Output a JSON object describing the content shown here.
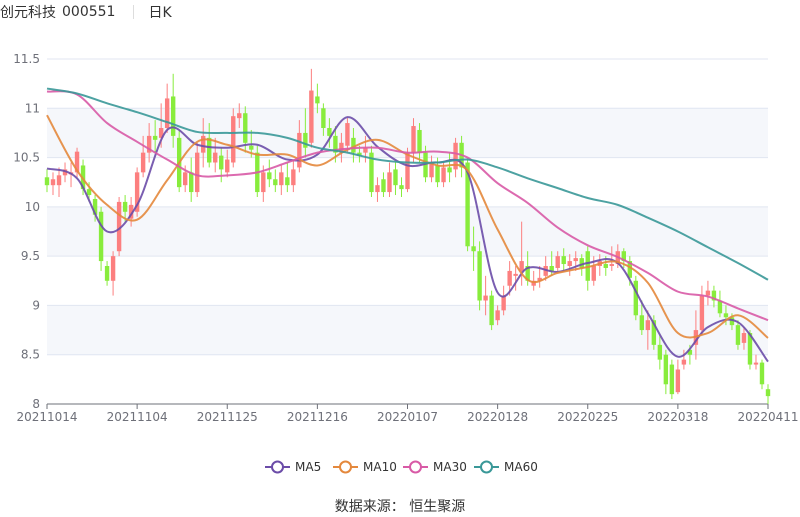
{
  "header": {
    "stock_name": "创元科技",
    "stock_code": "000551",
    "period": "日K"
  },
  "footer": {
    "source": "数据来源： 恒生聚源"
  },
  "chart_data": {
    "type": "candlestick",
    "ylim": [
      8,
      11.5
    ],
    "yticks": [
      "8",
      "8.5",
      "9",
      "9.5",
      "10",
      "10.5",
      "11",
      "11.5"
    ],
    "xtick_labels": [
      "20211014",
      "20211104",
      "20211125",
      "20211216",
      "20220107",
      "20220128",
      "20220225",
      "20220318",
      "20220411"
    ],
    "grid": true,
    "legend_position": "bottom",
    "colors": {
      "up": "#fc7f7f",
      "down": "#88ec3c",
      "MA5": "#6b4ca8",
      "MA10": "#e4883c",
      "MA30": "#d85aa6",
      "MA60": "#3a9898",
      "band": "#f5f7fb",
      "grid": "#e0e6f1"
    },
    "candles_ocLH": [
      [
        10.3,
        10.22,
        10.15,
        10.38
      ],
      [
        10.22,
        10.28,
        10.12,
        10.35
      ],
      [
        10.22,
        10.32,
        10.1,
        10.4
      ],
      [
        10.32,
        10.38,
        10.25,
        10.45
      ],
      [
        10.33,
        10.35,
        10.2,
        10.45
      ],
      [
        10.35,
        10.56,
        10.3,
        10.6
      ],
      [
        10.42,
        10.18,
        10.12,
        10.48
      ],
      [
        10.18,
        10.12,
        10.05,
        10.25
      ],
      [
        10.08,
        9.92,
        9.85,
        10.12
      ],
      [
        9.95,
        9.45,
        9.35,
        10.0
      ],
      [
        9.4,
        9.25,
        9.2,
        9.45
      ],
      [
        9.25,
        9.5,
        9.1,
        9.55
      ],
      [
        9.55,
        10.05,
        9.5,
        10.1
      ],
      [
        10.05,
        9.95,
        9.85,
        10.12
      ],
      [
        9.88,
        10.02,
        9.8,
        10.1
      ],
      [
        9.95,
        10.35,
        9.9,
        10.4
      ],
      [
        10.35,
        10.55,
        10.3,
        10.72
      ],
      [
        10.55,
        10.72,
        10.45,
        10.85
      ],
      [
        10.72,
        10.68,
        10.55,
        10.88
      ],
      [
        10.7,
        10.8,
        10.6,
        11.05
      ],
      [
        10.8,
        11.1,
        10.75,
        11.25
      ],
      [
        11.12,
        10.72,
        10.6,
        11.35
      ],
      [
        10.7,
        10.2,
        10.15,
        10.78
      ],
      [
        10.22,
        10.35,
        10.15,
        10.42
      ],
      [
        10.35,
        10.15,
        10.05,
        10.5
      ],
      [
        10.15,
        10.55,
        10.1,
        10.65
      ],
      [
        10.55,
        10.72,
        10.4,
        10.9
      ],
      [
        10.7,
        10.45,
        10.4,
        10.85
      ],
      [
        10.45,
        10.55,
        10.35,
        10.7
      ],
      [
        10.52,
        10.38,
        10.25,
        10.6
      ],
      [
        10.35,
        10.48,
        10.3,
        10.58
      ],
      [
        10.45,
        10.92,
        10.4,
        11.0
      ],
      [
        10.9,
        10.95,
        10.8,
        11.05
      ],
      [
        10.95,
        10.65,
        10.55,
        11.02
      ],
      [
        10.62,
        10.58,
        10.5,
        10.78
      ],
      [
        10.55,
        10.15,
        10.1,
        10.62
      ],
      [
        10.15,
        10.35,
        10.05,
        10.42
      ],
      [
        10.35,
        10.28,
        10.2,
        10.48
      ],
      [
        10.28,
        10.22,
        10.15,
        10.38
      ],
      [
        10.22,
        10.35,
        10.12,
        10.42
      ],
      [
        10.3,
        10.22,
        10.15,
        10.45
      ],
      [
        10.22,
        10.38,
        10.15,
        10.48
      ],
      [
        10.4,
        10.75,
        10.35,
        10.88
      ],
      [
        10.75,
        10.6,
        10.5,
        11.0
      ],
      [
        10.65,
        11.18,
        10.6,
        11.4
      ],
      [
        11.12,
        11.05,
        10.95,
        11.25
      ],
      [
        11.0,
        10.8,
        10.72,
        11.05
      ],
      [
        10.8,
        10.72,
        10.6,
        10.9
      ],
      [
        10.72,
        10.55,
        10.45,
        10.82
      ],
      [
        10.55,
        10.65,
        10.45,
        10.75
      ],
      [
        10.62,
        10.85,
        10.55,
        10.9
      ],
      [
        10.7,
        10.55,
        10.45,
        10.8
      ],
      [
        10.55,
        10.52,
        10.45,
        10.62
      ],
      [
        10.55,
        10.6,
        10.45,
        10.72
      ],
      [
        10.55,
        10.15,
        10.1,
        10.62
      ],
      [
        10.15,
        10.22,
        10.05,
        10.3
      ],
      [
        10.28,
        10.15,
        10.1,
        10.35
      ],
      [
        10.15,
        10.35,
        10.1,
        10.45
      ],
      [
        10.38,
        10.22,
        10.12,
        10.45
      ],
      [
        10.22,
        10.18,
        10.1,
        10.3
      ],
      [
        10.18,
        10.55,
        10.15,
        10.6
      ],
      [
        10.55,
        10.82,
        10.45,
        10.9
      ],
      [
        10.78,
        10.55,
        10.45,
        10.85
      ],
      [
        10.55,
        10.3,
        10.25,
        10.62
      ],
      [
        10.3,
        10.45,
        10.25,
        10.52
      ],
      [
        10.42,
        10.25,
        10.2,
        10.5
      ],
      [
        10.25,
        10.4,
        10.2,
        10.45
      ],
      [
        10.4,
        10.35,
        10.25,
        10.55
      ],
      [
        10.38,
        10.65,
        10.3,
        10.7
      ],
      [
        10.65,
        10.4,
        10.3,
        10.72
      ],
      [
        10.45,
        9.6,
        9.55,
        10.48
      ],
      [
        9.6,
        9.55,
        9.35,
        9.8
      ],
      [
        9.55,
        9.05,
        8.95,
        9.65
      ],
      [
        9.05,
        9.1,
        8.9,
        9.3
      ],
      [
        9.1,
        8.8,
        8.75,
        9.15
      ],
      [
        8.85,
        8.95,
        8.8,
        9.0
      ],
      [
        8.95,
        9.1,
        8.9,
        9.2
      ],
      [
        9.2,
        9.35,
        9.1,
        9.45
      ],
      [
        9.3,
        9.32,
        9.15,
        9.4
      ],
      [
        9.35,
        9.45,
        9.2,
        9.85
      ],
      [
        9.4,
        9.25,
        9.2,
        9.55
      ],
      [
        9.2,
        9.25,
        9.15,
        9.35
      ],
      [
        9.25,
        9.28,
        9.18,
        9.4
      ],
      [
        9.3,
        9.4,
        9.25,
        9.5
      ],
      [
        9.4,
        9.35,
        9.3,
        9.55
      ],
      [
        9.38,
        9.5,
        9.35,
        9.55
      ],
      [
        9.5,
        9.42,
        9.35,
        9.58
      ],
      [
        9.4,
        9.45,
        9.3,
        9.52
      ],
      [
        9.45,
        9.48,
        9.35,
        9.55
      ],
      [
        9.48,
        9.38,
        9.3,
        9.52
      ],
      [
        9.55,
        9.25,
        9.15,
        9.6
      ],
      [
        9.25,
        9.4,
        9.2,
        9.5
      ],
      [
        9.4,
        9.45,
        9.3,
        9.52
      ],
      [
        9.42,
        9.38,
        9.3,
        9.5
      ],
      [
        9.4,
        9.42,
        9.35,
        9.6
      ],
      [
        9.42,
        9.55,
        9.38,
        9.62
      ],
      [
        9.55,
        9.45,
        9.38,
        9.58
      ],
      [
        9.45,
        9.28,
        9.2,
        9.5
      ],
      [
        9.25,
        8.9,
        8.85,
        9.3
      ],
      [
        8.9,
        8.75,
        8.7,
        9.05
      ],
      [
        8.75,
        8.85,
        8.55,
        8.95
      ],
      [
        8.85,
        8.6,
        8.55,
        8.9
      ],
      [
        8.6,
        8.45,
        8.35,
        8.7
      ],
      [
        8.5,
        8.2,
        8.1,
        8.55
      ],
      [
        8.4,
        8.1,
        8.05,
        8.45
      ],
      [
        8.12,
        8.35,
        8.1,
        8.45
      ],
      [
        8.4,
        8.45,
        8.35,
        8.55
      ],
      [
        8.55,
        8.5,
        8.4,
        8.6
      ],
      [
        8.6,
        8.75,
        8.45,
        8.95
      ],
      [
        8.75,
        9.1,
        8.7,
        9.2
      ],
      [
        9.1,
        9.15,
        9.0,
        9.25
      ],
      [
        9.15,
        9.05,
        8.98,
        9.2
      ],
      [
        9.05,
        8.92,
        8.88,
        9.15
      ],
      [
        8.92,
        8.88,
        8.8,
        9.0
      ],
      [
        8.88,
        8.8,
        8.75,
        8.92
      ],
      [
        8.8,
        8.6,
        8.55,
        8.85
      ],
      [
        8.62,
        8.72,
        8.55,
        8.78
      ],
      [
        8.72,
        8.4,
        8.35,
        8.75
      ],
      [
        8.4,
        8.42,
        8.35,
        8.5
      ],
      [
        8.42,
        8.2,
        8.15,
        8.45
      ],
      [
        8.15,
        8.08,
        7.98,
        8.2
      ]
    ],
    "series": [
      {
        "name": "MA5",
        "values": [
          10.39,
          10.29,
          9.75,
          10.02,
          10.78,
          10.63,
          10.6,
          10.63,
          10.48,
          10.53,
          10.91,
          10.61,
          10.42,
          10.45,
          10.35,
          9.13,
          9.38,
          9.34,
          9.43,
          9.43,
          8.92,
          8.48,
          8.78,
          8.83,
          8.43
        ]
      },
      {
        "name": "MA10",
        "values": [
          10.93,
          10.37,
          10.02,
          9.87,
          10.27,
          10.66,
          10.63,
          10.53,
          10.53,
          10.42,
          10.58,
          10.68,
          10.53,
          10.42,
          10.37,
          9.77,
          9.26,
          9.33,
          9.39,
          9.44,
          9.23,
          8.72,
          8.72,
          8.9,
          8.67
        ]
      },
      {
        "name": "MA30",
        "values": [
          11.17,
          11.14,
          10.85,
          10.66,
          10.48,
          10.32,
          10.32,
          10.35,
          10.45,
          10.55,
          10.59,
          10.6,
          10.55,
          10.56,
          10.5,
          10.24,
          10.04,
          9.79,
          9.61,
          9.49,
          9.33,
          9.14,
          9.09,
          8.97,
          8.85
        ]
      },
      {
        "name": "MA60",
        "values": [
          11.2,
          11.15,
          11.05,
          10.96,
          10.86,
          10.76,
          10.75,
          10.75,
          10.7,
          10.6,
          10.55,
          10.48,
          10.45,
          10.45,
          10.48,
          10.4,
          10.29,
          10.19,
          10.09,
          10.02,
          9.89,
          9.75,
          9.59,
          9.43,
          9.26
        ]
      }
    ]
  }
}
